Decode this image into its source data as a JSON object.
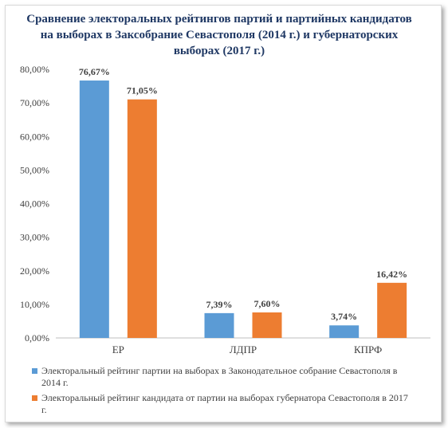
{
  "chart_data": {
    "type": "bar",
    "title": "Сравнение электоральных рейтингов партий и партийных кандидатов на выборах в Заксобрание Севастополя (2014 г.) и губернаторских выборах (2017 г.)",
    "categories": [
      "ЕР",
      "ЛДПР",
      "КПРФ"
    ],
    "series": [
      {
        "name": "Электоральный рейтинг партии на выборах в Законодательное собрание Севастополя в 2014 г.",
        "values": [
          76.67,
          7.39,
          3.74
        ],
        "labels": [
          "76,67%",
          "7,39%",
          "3,74%"
        ],
        "color": "#5b9bd5"
      },
      {
        "name": "Электоральный рейтинг кандидата от партии на выборах губернатора Севастополя в 2017 г.",
        "values": [
          71.05,
          7.6,
          16.42
        ],
        "labels": [
          "71,05%",
          "7,60%",
          "16,42%"
        ],
        "color": "#ed7d31"
      }
    ],
    "ylim": [
      0,
      80
    ],
    "yticks": [
      "0,00%",
      "10,00%",
      "20,00%",
      "30,00%",
      "40,00%",
      "50,00%",
      "60,00%",
      "70,00%",
      "80,00%"
    ],
    "grid": false,
    "legend": "bottom"
  }
}
